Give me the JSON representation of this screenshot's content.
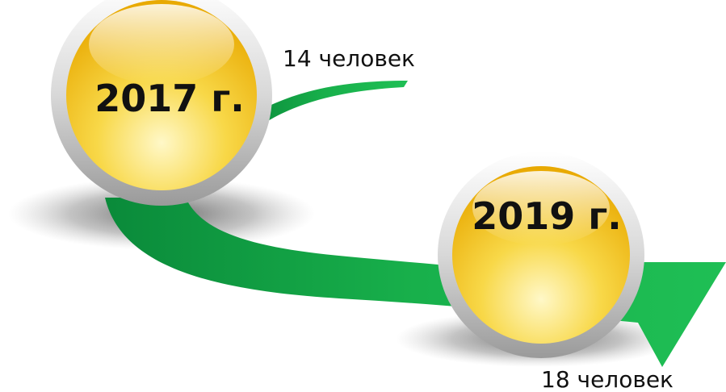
{
  "nodes": [
    {
      "label": "2017 г.",
      "caption": "14 человек"
    },
    {
      "label": "2019 г.",
      "caption": "18 человек"
    }
  ]
}
